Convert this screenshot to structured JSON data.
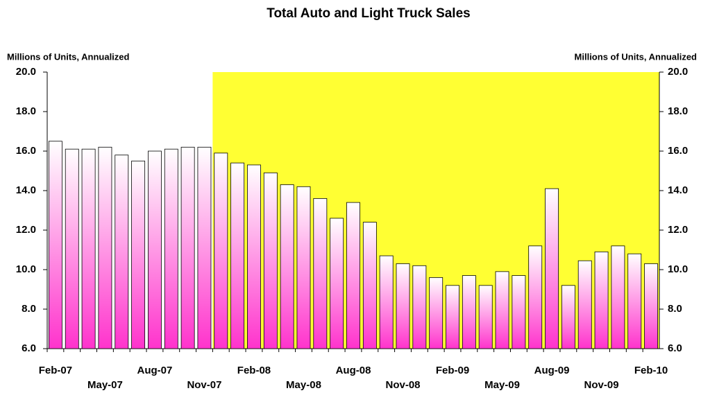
{
  "chart_data": {
    "type": "bar",
    "title": "Total Auto and Light Truck Sales",
    "y_label": "Millions of Units, Annualized",
    "y2_label": "Millions of Units, Annualized",
    "categories": [
      "Feb-07",
      null,
      null,
      "May-07",
      null,
      null,
      "Aug-07",
      null,
      null,
      "Nov-07",
      null,
      null,
      "Feb-08",
      null,
      null,
      "May-08",
      null,
      null,
      "Aug-08",
      null,
      null,
      "Nov-08",
      null,
      null,
      "Feb-09",
      null,
      null,
      "May-09",
      null,
      null,
      "Aug-09",
      null,
      null,
      "Nov-09",
      null,
      null,
      "Feb-10"
    ],
    "values": [
      16.5,
      16.1,
      16.1,
      16.2,
      15.8,
      15.5,
      16.0,
      16.1,
      16.2,
      16.2,
      15.9,
      15.4,
      15.3,
      14.9,
      14.3,
      14.2,
      13.6,
      12.6,
      13.4,
      12.4,
      10.7,
      10.3,
      10.2,
      9.6,
      9.2,
      9.7,
      9.2,
      9.9,
      9.7,
      11.2,
      14.1,
      9.2,
      10.45,
      10.9,
      11.2,
      10.8,
      10.3
    ],
    "color": "#ff33cc",
    "highlight_from_index": 10,
    "highlight_color": "#ffff33",
    "ylim": [
      6,
      20
    ],
    "yticks": [
      {
        "value": 6,
        "label": "6.0"
      },
      {
        "value": 8,
        "label": "8.0"
      },
      {
        "value": 10,
        "label": "10.0"
      },
      {
        "value": 12,
        "label": "12.0"
      },
      {
        "value": 14,
        "label": "14.0"
      },
      {
        "value": 16,
        "label": "16.0"
      },
      {
        "value": 18,
        "label": "18.0"
      },
      {
        "value": 20,
        "label": "20.0"
      }
    ],
    "y2lim": [
      6,
      20
    ],
    "y2ticks": [
      {
        "value": 6,
        "label": "6.0"
      },
      {
        "value": 8,
        "label": "8.0"
      },
      {
        "value": 10,
        "label": "10.0"
      },
      {
        "value": 12,
        "label": "12.0"
      },
      {
        "value": 14,
        "label": "14.0"
      },
      {
        "value": 16,
        "label": "16.0"
      },
      {
        "value": 18,
        "label": "18.0"
      },
      {
        "value": 20,
        "label": "20.0"
      }
    ],
    "grid": false
  }
}
